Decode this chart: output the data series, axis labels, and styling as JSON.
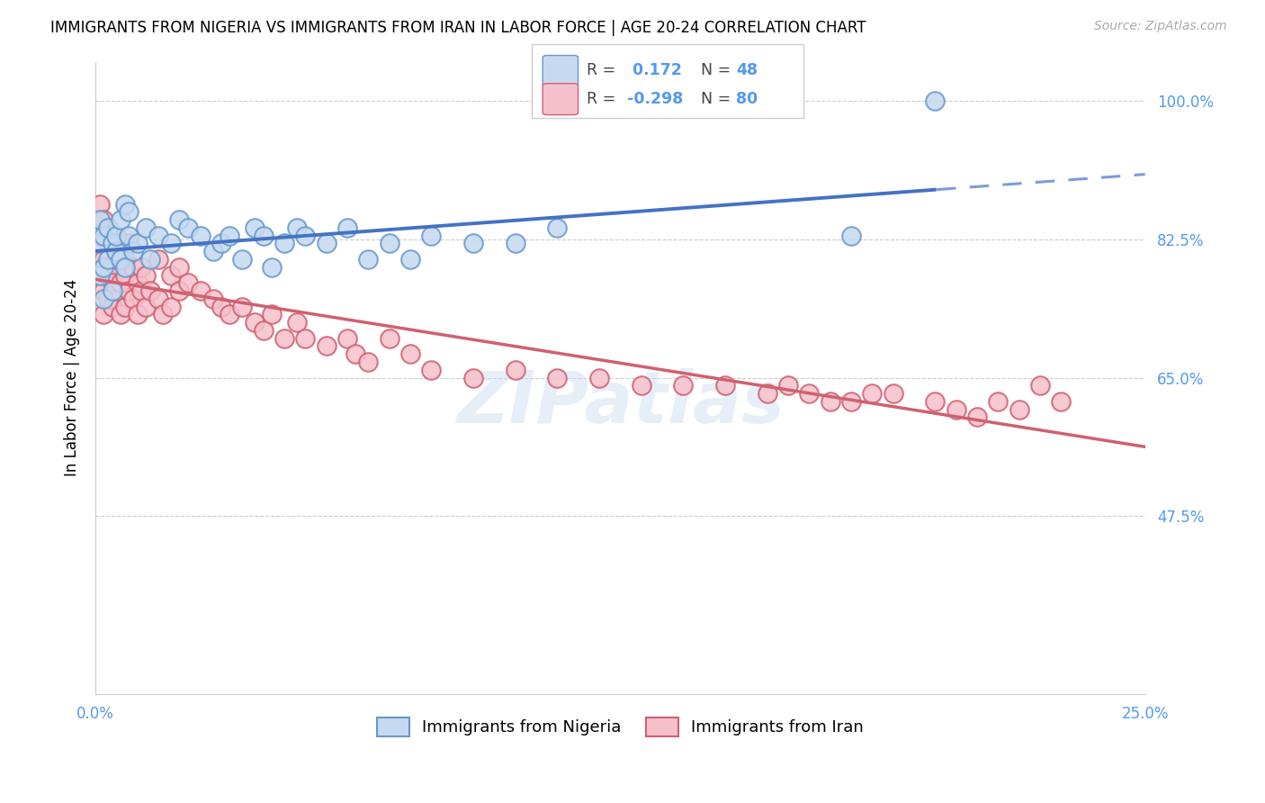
{
  "title": "IMMIGRANTS FROM NIGERIA VS IMMIGRANTS FROM IRAN IN LABOR FORCE | AGE 20-24 CORRELATION CHART",
  "source": "Source: ZipAtlas.com",
  "ylabel": "In Labor Force | Age 20-24",
  "xlim": [
    0.0,
    0.25
  ],
  "ylim": [
    0.25,
    1.05
  ],
  "yticks": [
    0.475,
    0.65,
    0.825,
    1.0
  ],
  "ytick_labels": [
    "47.5%",
    "65.0%",
    "82.5%",
    "100.0%"
  ],
  "xticks": [
    0.0,
    0.05,
    0.1,
    0.15,
    0.2,
    0.25
  ],
  "xtick_labels": [
    "0.0%",
    "",
    "",
    "",
    "",
    "25.0%"
  ],
  "watermark": "ZIPatlas",
  "color_nigeria_fill": "#c5d9f0",
  "color_nigeria_edge": "#6699cc",
  "color_iran_fill": "#f5c0cc",
  "color_iran_edge": "#d06070",
  "color_line_nigeria": "#4472c4",
  "color_line_iran": "#d06070",
  "color_tick_labels": "#5599ee",
  "color_grid": "#cccccc",
  "ng_x": [
    0.001,
    0.001,
    0.001,
    0.002,
    0.002,
    0.002,
    0.003,
    0.003,
    0.004,
    0.004,
    0.005,
    0.005,
    0.006,
    0.006,
    0.007,
    0.007,
    0.008,
    0.008,
    0.009,
    0.01,
    0.012,
    0.013,
    0.015,
    0.018,
    0.02,
    0.022,
    0.025,
    0.028,
    0.03,
    0.032,
    0.035,
    0.038,
    0.04,
    0.042,
    0.045,
    0.048,
    0.05,
    0.055,
    0.06,
    0.065,
    0.07,
    0.075,
    0.08,
    0.09,
    0.1,
    0.11,
    0.18,
    0.2
  ],
  "ng_y": [
    0.78,
    0.82,
    0.85,
    0.79,
    0.83,
    0.75,
    0.84,
    0.8,
    0.82,
    0.76,
    0.81,
    0.83,
    0.8,
    0.85,
    0.87,
    0.79,
    0.83,
    0.86,
    0.81,
    0.82,
    0.84,
    0.8,
    0.83,
    0.82,
    0.85,
    0.84,
    0.83,
    0.81,
    0.82,
    0.83,
    0.8,
    0.84,
    0.83,
    0.79,
    0.82,
    0.84,
    0.83,
    0.82,
    0.84,
    0.8,
    0.82,
    0.8,
    0.83,
    0.82,
    0.82,
    0.84,
    0.83,
    1.0
  ],
  "ir_x": [
    0.001,
    0.001,
    0.001,
    0.002,
    0.002,
    0.002,
    0.002,
    0.003,
    0.003,
    0.003,
    0.004,
    0.004,
    0.004,
    0.005,
    0.005,
    0.005,
    0.006,
    0.006,
    0.006,
    0.007,
    0.007,
    0.007,
    0.008,
    0.008,
    0.009,
    0.009,
    0.01,
    0.01,
    0.011,
    0.011,
    0.012,
    0.012,
    0.013,
    0.015,
    0.015,
    0.016,
    0.018,
    0.018,
    0.02,
    0.02,
    0.022,
    0.025,
    0.028,
    0.03,
    0.032,
    0.035,
    0.038,
    0.04,
    0.042,
    0.045,
    0.048,
    0.05,
    0.055,
    0.06,
    0.062,
    0.065,
    0.07,
    0.075,
    0.08,
    0.09,
    0.1,
    0.11,
    0.12,
    0.13,
    0.14,
    0.15,
    0.16,
    0.165,
    0.17,
    0.175,
    0.18,
    0.185,
    0.19,
    0.2,
    0.205,
    0.21,
    0.215,
    0.22,
    0.225,
    0.23
  ],
  "ir_y": [
    0.78,
    0.83,
    0.87,
    0.8,
    0.85,
    0.73,
    0.76,
    0.82,
    0.75,
    0.78,
    0.79,
    0.74,
    0.77,
    0.83,
    0.76,
    0.8,
    0.82,
    0.77,
    0.73,
    0.78,
    0.74,
    0.8,
    0.76,
    0.82,
    0.79,
    0.75,
    0.77,
    0.73,
    0.79,
    0.76,
    0.78,
    0.74,
    0.76,
    0.8,
    0.75,
    0.73,
    0.74,
    0.78,
    0.76,
    0.79,
    0.77,
    0.76,
    0.75,
    0.74,
    0.73,
    0.74,
    0.72,
    0.71,
    0.73,
    0.7,
    0.72,
    0.7,
    0.69,
    0.7,
    0.68,
    0.67,
    0.7,
    0.68,
    0.66,
    0.65,
    0.66,
    0.65,
    0.65,
    0.64,
    0.64,
    0.64,
    0.63,
    0.64,
    0.63,
    0.62,
    0.62,
    0.63,
    0.63,
    0.62,
    0.61,
    0.6,
    0.62,
    0.61,
    0.64,
    0.62
  ]
}
